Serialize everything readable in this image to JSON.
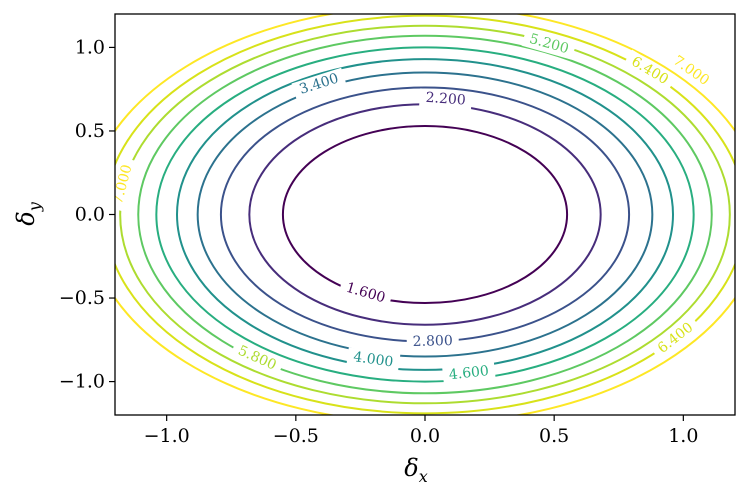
{
  "chart_data": {
    "type": "contour",
    "title": "",
    "xlabel": {
      "symbol": "δ",
      "subscript": "x"
    },
    "ylabel": {
      "symbol": "δ",
      "subscript": "y"
    },
    "xlim": [
      -1.2,
      1.2
    ],
    "ylim": [
      -1.2,
      1.2
    ],
    "xticks": [
      -1.0,
      -0.5,
      0.0,
      0.5,
      1.0
    ],
    "yticks": [
      -1.0,
      -0.5,
      0.0,
      0.5,
      1.0
    ],
    "xtick_labels": [
      "−1.0",
      "−0.5",
      "0.0",
      "0.5",
      "1.0"
    ],
    "ytick_labels": [
      "−1.0",
      "−0.5",
      "0.0",
      "0.5",
      "1.0"
    ],
    "grid": false,
    "colormap": "viridis",
    "levels": [
      {
        "value": 1.6,
        "color": "#440154",
        "a": 0.55,
        "b": 0.53
      },
      {
        "value": 2.2,
        "color": "#472d7b",
        "a": 0.68,
        "b": 0.66
      },
      {
        "value": 2.8,
        "color": "#3b528b",
        "a": 0.79,
        "b": 0.76
      },
      {
        "value": 3.4,
        "color": "#2c728e",
        "a": 0.88,
        "b": 0.85
      },
      {
        "value": 4.0,
        "color": "#21918c",
        "a": 0.96,
        "b": 0.93
      },
      {
        "value": 4.6,
        "color": "#28ae80",
        "a": 1.04,
        "b": 1.0
      },
      {
        "value": 5.2,
        "color": "#5ec962",
        "a": 1.11,
        "b": 1.07
      },
      {
        "value": 5.8,
        "color": "#addc30",
        "a": 1.18,
        "b": 1.13
      },
      {
        "value": 6.4,
        "color": "#d8e219",
        "a": 1.24,
        "b": 1.19
      },
      {
        "value": 7.0,
        "color": "#fde725",
        "a": 1.31,
        "b": 1.25
      }
    ],
    "contour_labels": [
      {
        "text": "1.600",
        "value": 1.6,
        "x": -0.23,
        "y": -0.47
      },
      {
        "text": "2.200",
        "value": 2.2,
        "x": 0.08,
        "y": 0.69
      },
      {
        "text": "2.800",
        "value": 2.8,
        "x": 0.03,
        "y": -0.76
      },
      {
        "text": "3.400",
        "value": 3.4,
        "x": -0.41,
        "y": 0.78
      },
      {
        "text": "4.000",
        "value": 4.0,
        "x": -0.2,
        "y": -0.87
      },
      {
        "text": "4.600",
        "value": 4.6,
        "x": 0.17,
        "y": -0.95
      },
      {
        "text": "5.200",
        "value": 5.2,
        "x": 0.48,
        "y": 1.02
      },
      {
        "text": "5.800",
        "value": 5.8,
        "x": -0.65,
        "y": -0.86
      },
      {
        "text": "6.400",
        "value": 6.4,
        "x": 0.87,
        "y": 0.86
      },
      {
        "text": "6.400",
        "value": 6.4,
        "x": 0.97,
        "y": -0.74
      },
      {
        "text": "7.000",
        "value": 7.0,
        "x": 1.03,
        "y": 0.86
      },
      {
        "text": "7.000",
        "value": 7.0,
        "x": -1.17,
        "y": 0.18
      }
    ]
  }
}
